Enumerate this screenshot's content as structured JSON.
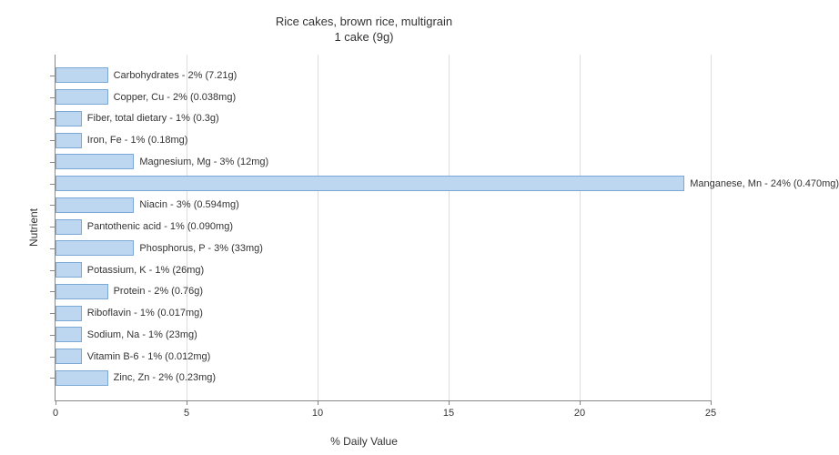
{
  "chart": {
    "type": "horizontal-bar",
    "title_line1": "Rice cakes, brown rice, multigrain",
    "title_line2": "1 cake (9g)",
    "title_fontsize": 13,
    "xlabel": "% Daily Value",
    "ylabel": "Nutrient",
    "label_fontsize": 12,
    "xlim": [
      0,
      25
    ],
    "xtick_step": 5,
    "xticks": [
      0,
      5,
      10,
      15,
      20,
      25
    ],
    "bar_color": "#bed7f1",
    "bar_border_color": "#7ba8d6",
    "grid_color": "#dddddd",
    "axis_color": "#888888",
    "background_color": "#ffffff",
    "bar_label_fontsize": 11,
    "bars": [
      {
        "label": "Carbohydrates - 2% (7.21g)",
        "value": 2
      },
      {
        "label": "Copper, Cu - 2% (0.038mg)",
        "value": 2
      },
      {
        "label": "Fiber, total dietary - 1% (0.3g)",
        "value": 1
      },
      {
        "label": "Iron, Fe - 1% (0.18mg)",
        "value": 1
      },
      {
        "label": "Magnesium, Mg - 3% (12mg)",
        "value": 3
      },
      {
        "label": "Manganese, Mn - 24% (0.470mg)",
        "value": 24
      },
      {
        "label": "Niacin - 3% (0.594mg)",
        "value": 3
      },
      {
        "label": "Pantothenic acid - 1% (0.090mg)",
        "value": 1
      },
      {
        "label": "Phosphorus, P - 3% (33mg)",
        "value": 3
      },
      {
        "label": "Potassium, K - 1% (26mg)",
        "value": 1
      },
      {
        "label": "Protein - 2% (0.76g)",
        "value": 2
      },
      {
        "label": "Riboflavin - 1% (0.017mg)",
        "value": 1
      },
      {
        "label": "Sodium, Na - 1% (23mg)",
        "value": 1
      },
      {
        "label": "Vitamin B-6 - 1% (0.012mg)",
        "value": 1
      },
      {
        "label": "Zinc, Zn - 2% (0.23mg)",
        "value": 2
      }
    ]
  }
}
